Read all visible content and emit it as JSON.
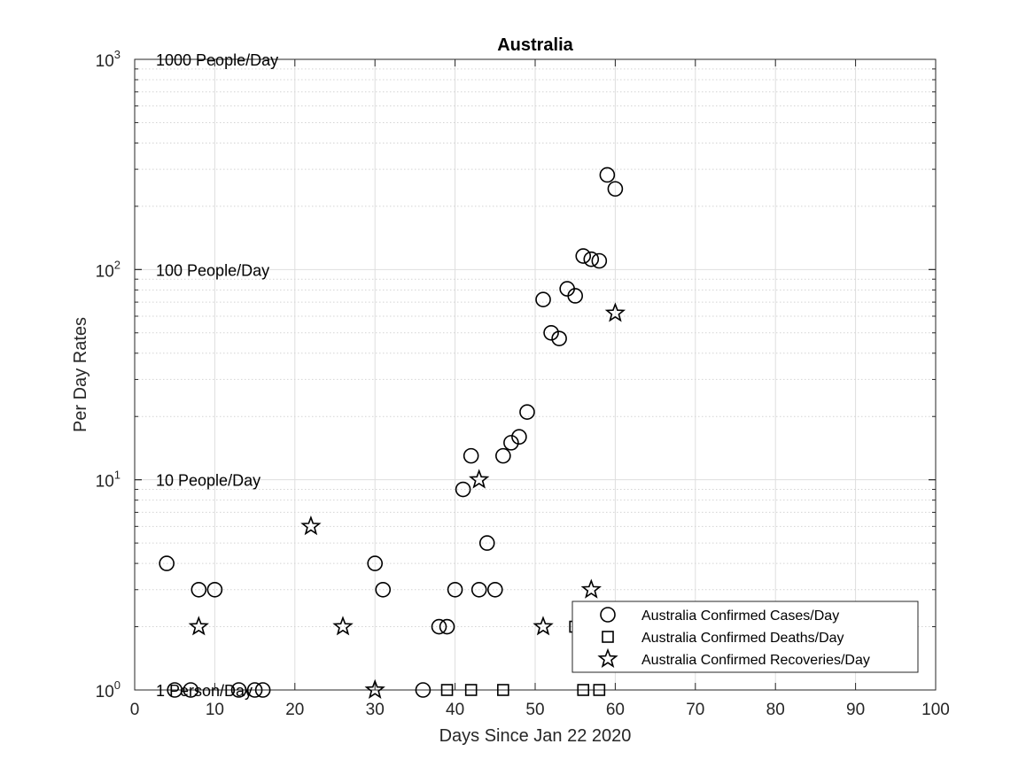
{
  "chart_data": {
    "type": "scatter",
    "title": "Australia",
    "xlabel": "Days Since Jan 22 2020",
    "ylabel": "Per Day Rates",
    "xlim": [
      0,
      100
    ],
    "ylim": [
      1,
      1000
    ],
    "yscale": "log",
    "grid": true,
    "legend_position": "bottom-right",
    "x_ticks": [
      0,
      10,
      20,
      30,
      40,
      50,
      60,
      70,
      80,
      90,
      100
    ],
    "y_ticks": [
      {
        "value": 1,
        "base": "10",
        "exp": "0"
      },
      {
        "value": 10,
        "base": "10",
        "exp": "1"
      },
      {
        "value": 100,
        "base": "10",
        "exp": "2"
      },
      {
        "value": 1000,
        "base": "10",
        "exp": "3"
      }
    ],
    "reference_labels": [
      {
        "y": 1000,
        "text": "1000 People/Day"
      },
      {
        "y": 100,
        "text": "100 People/Day"
      },
      {
        "y": 10,
        "text": "10 People/Day"
      },
      {
        "y": 1,
        "text": "1 Person/Day"
      }
    ],
    "series": [
      {
        "name": "Australia Confirmed Cases/Day",
        "marker": "circle",
        "points": [
          [
            4,
            4
          ],
          [
            5,
            1
          ],
          [
            7,
            1
          ],
          [
            8,
            3
          ],
          [
            10,
            3
          ],
          [
            13,
            1
          ],
          [
            15,
            1
          ],
          [
            16,
            1
          ],
          [
            30,
            4
          ],
          [
            31,
            3
          ],
          [
            36,
            1
          ],
          [
            38,
            2
          ],
          [
            39,
            2
          ],
          [
            40,
            3
          ],
          [
            41,
            9
          ],
          [
            42,
            13
          ],
          [
            43,
            3
          ],
          [
            44,
            5
          ],
          [
            45,
            3
          ],
          [
            46,
            13
          ],
          [
            47,
            15
          ],
          [
            48,
            16
          ],
          [
            49,
            21
          ],
          [
            51,
            72
          ],
          [
            52,
            50
          ],
          [
            53,
            47
          ],
          [
            54,
            81
          ],
          [
            55,
            75
          ],
          [
            56,
            116
          ],
          [
            57,
            112
          ],
          [
            58,
            110
          ],
          [
            59,
            282
          ],
          [
            60,
            242
          ]
        ]
      },
      {
        "name": "Australia Confirmed Deaths/Day",
        "marker": "square",
        "points": [
          [
            39,
            1
          ],
          [
            42,
            1
          ],
          [
            46,
            1
          ],
          [
            55,
            2
          ],
          [
            56,
            1
          ],
          [
            58,
            1
          ]
        ]
      },
      {
        "name": "Australia Confirmed Recoveries/Day",
        "marker": "star",
        "points": [
          [
            8,
            2
          ],
          [
            22,
            6
          ],
          [
            26,
            2
          ],
          [
            30,
            1
          ],
          [
            43,
            10
          ],
          [
            51,
            2
          ],
          [
            57,
            3
          ],
          [
            60,
            62
          ]
        ]
      }
    ]
  }
}
